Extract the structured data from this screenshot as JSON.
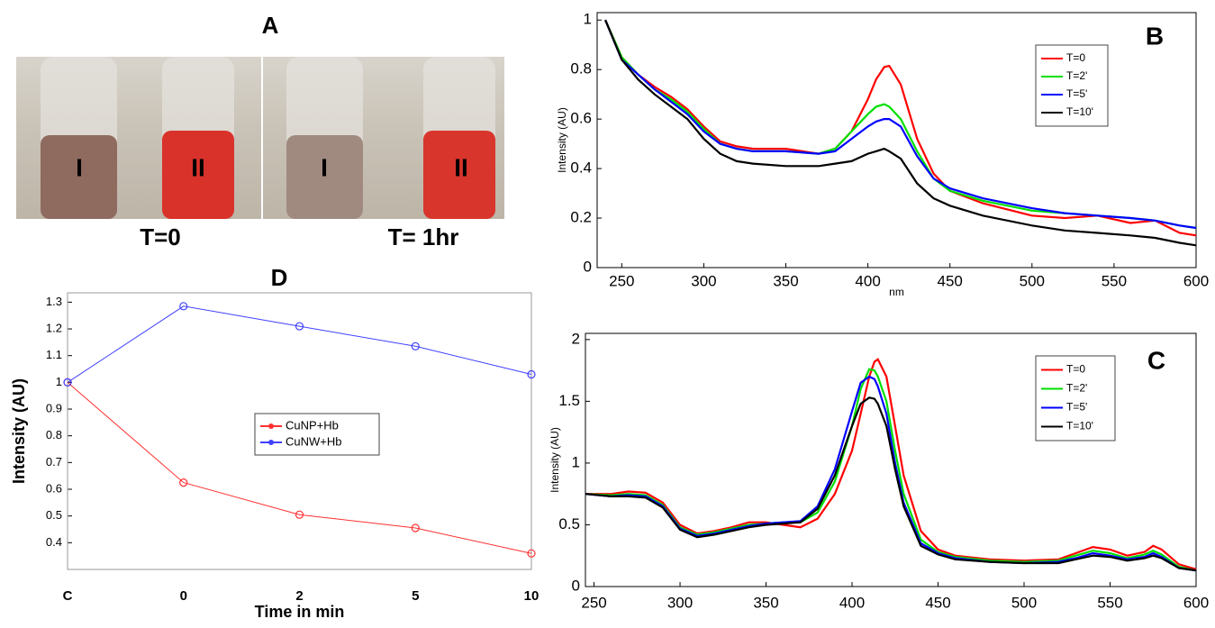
{
  "photo_panel": {
    "label": "A",
    "photos": [
      {
        "caption": "T=0",
        "vials": [
          "I",
          "II"
        ]
      },
      {
        "caption": "T= 1hr",
        "vials": [
          "I",
          "II"
        ]
      }
    ]
  },
  "chart_data": [
    {
      "type": "line",
      "title": "B",
      "xlabel": "nm",
      "ylabel": "Intensity (AU)",
      "legend": "upper right",
      "x": [
        240,
        250,
        260,
        270,
        280,
        290,
        300,
        310,
        320,
        330,
        350,
        370,
        380,
        390,
        400,
        405,
        410,
        413,
        420,
        430,
        440,
        450,
        470,
        500,
        520,
        540,
        560,
        575,
        590,
        600
      ],
      "xlim": [
        235,
        600
      ],
      "xticks": [
        250,
        300,
        350,
        400,
        450,
        500,
        550,
        600
      ],
      "ylim": [
        0,
        1.03
      ],
      "yticks": [
        0,
        0.2,
        0.4,
        0.6,
        0.8,
        1
      ],
      "series": [
        {
          "name": "T=0",
          "color": "#ff0000",
          "values": [
            1.0,
            0.85,
            0.78,
            0.73,
            0.69,
            0.64,
            0.57,
            0.51,
            0.49,
            0.48,
            0.48,
            0.46,
            0.48,
            0.55,
            0.68,
            0.76,
            0.81,
            0.815,
            0.74,
            0.52,
            0.38,
            0.31,
            0.26,
            0.21,
            0.2,
            0.21,
            0.18,
            0.19,
            0.14,
            0.13
          ]
        },
        {
          "name": "T=2'",
          "color": "#00e000",
          "values": [
            1.0,
            0.85,
            0.78,
            0.72,
            0.68,
            0.63,
            0.56,
            0.5,
            0.48,
            0.47,
            0.47,
            0.46,
            0.48,
            0.55,
            0.62,
            0.65,
            0.66,
            0.65,
            0.6,
            0.47,
            0.36,
            0.31,
            0.27,
            0.23,
            0.22,
            0.21,
            0.2,
            0.19,
            0.17,
            0.16
          ]
        },
        {
          "name": "T=5'",
          "color": "#0000ff",
          "values": [
            1.0,
            0.84,
            0.78,
            0.72,
            0.67,
            0.62,
            0.55,
            0.5,
            0.48,
            0.47,
            0.47,
            0.46,
            0.47,
            0.52,
            0.57,
            0.59,
            0.6,
            0.6,
            0.57,
            0.45,
            0.36,
            0.32,
            0.28,
            0.24,
            0.22,
            0.21,
            0.2,
            0.19,
            0.17,
            0.16
          ]
        },
        {
          "name": "T=10'",
          "color": "#000000",
          "values": [
            1.0,
            0.84,
            0.76,
            0.7,
            0.65,
            0.6,
            0.52,
            0.46,
            0.43,
            0.42,
            0.41,
            0.41,
            0.42,
            0.43,
            0.46,
            0.47,
            0.48,
            0.47,
            0.44,
            0.34,
            0.28,
            0.25,
            0.21,
            0.17,
            0.15,
            0.14,
            0.13,
            0.12,
            0.1,
            0.09
          ]
        }
      ]
    },
    {
      "type": "line",
      "title": "C",
      "xlabel": "nm",
      "ylabel": "Intensity (AU)",
      "legend": "upper right",
      "x": [
        245,
        260,
        270,
        280,
        290,
        300,
        310,
        320,
        330,
        340,
        350,
        360,
        370,
        380,
        390,
        400,
        405,
        410,
        413,
        415,
        420,
        425,
        430,
        440,
        450,
        460,
        480,
        500,
        520,
        530,
        540,
        550,
        560,
        570,
        575,
        580,
        590,
        600
      ],
      "xlim": [
        245,
        600
      ],
      "xticks": [
        250,
        300,
        350,
        400,
        450,
        500,
        550,
        600
      ],
      "ylim": [
        0,
        2.05
      ],
      "yticks": [
        0,
        0.5,
        1,
        1.5,
        2
      ],
      "series": [
        {
          "name": "T=0",
          "color": "#ff0000",
          "values": [
            0.75,
            0.75,
            0.77,
            0.76,
            0.68,
            0.5,
            0.43,
            0.45,
            0.48,
            0.52,
            0.52,
            0.5,
            0.48,
            0.55,
            0.75,
            1.1,
            1.4,
            1.7,
            1.82,
            1.84,
            1.7,
            1.3,
            0.9,
            0.45,
            0.3,
            0.25,
            0.22,
            0.21,
            0.22,
            0.27,
            0.32,
            0.3,
            0.25,
            0.28,
            0.33,
            0.3,
            0.18,
            0.14
          ]
        },
        {
          "name": "T=2'",
          "color": "#00e000",
          "values": [
            0.75,
            0.74,
            0.75,
            0.74,
            0.66,
            0.48,
            0.42,
            0.44,
            0.47,
            0.5,
            0.51,
            0.52,
            0.52,
            0.6,
            0.85,
            1.3,
            1.6,
            1.76,
            1.75,
            1.7,
            1.5,
            1.1,
            0.75,
            0.38,
            0.28,
            0.24,
            0.21,
            0.2,
            0.21,
            0.25,
            0.29,
            0.27,
            0.23,
            0.26,
            0.29,
            0.26,
            0.16,
            0.13
          ]
        },
        {
          "name": "T=5'",
          "color": "#0000ff",
          "values": [
            0.75,
            0.73,
            0.74,
            0.73,
            0.65,
            0.47,
            0.41,
            0.43,
            0.46,
            0.49,
            0.51,
            0.52,
            0.53,
            0.65,
            0.95,
            1.42,
            1.65,
            1.7,
            1.68,
            1.62,
            1.4,
            1.0,
            0.68,
            0.35,
            0.27,
            0.23,
            0.2,
            0.19,
            0.2,
            0.23,
            0.27,
            0.25,
            0.22,
            0.24,
            0.27,
            0.24,
            0.15,
            0.13
          ]
        },
        {
          "name": "T=10'",
          "color": "#000000",
          "values": [
            0.75,
            0.73,
            0.73,
            0.72,
            0.64,
            0.46,
            0.4,
            0.42,
            0.45,
            0.48,
            0.5,
            0.51,
            0.52,
            0.63,
            0.9,
            1.3,
            1.48,
            1.53,
            1.52,
            1.48,
            1.3,
            0.95,
            0.65,
            0.33,
            0.26,
            0.22,
            0.2,
            0.19,
            0.19,
            0.22,
            0.25,
            0.24,
            0.21,
            0.23,
            0.25,
            0.23,
            0.15,
            0.13
          ]
        }
      ]
    },
    {
      "type": "line",
      "title": "D",
      "xlabel": "Time in min",
      "ylabel": "Intensity (AU)",
      "legend": "center",
      "markers": "circle",
      "categories": [
        "C",
        "0",
        "2",
        "5",
        "10"
      ],
      "ylim": [
        0.3,
        1.335
      ],
      "yticks": [
        0.4,
        0.5,
        0.6,
        0.7,
        0.8,
        0.9,
        1,
        1.1,
        1.2,
        1.3
      ],
      "series": [
        {
          "name": "CuNP+Hb",
          "color": "#ff3030",
          "values": [
            1,
            0.625,
            0.505,
            0.455,
            0.36
          ]
        },
        {
          "name": "CuNW+Hb",
          "color": "#4040ff",
          "values": [
            1,
            1.285,
            1.21,
            1.135,
            1.03
          ]
        }
      ]
    }
  ]
}
